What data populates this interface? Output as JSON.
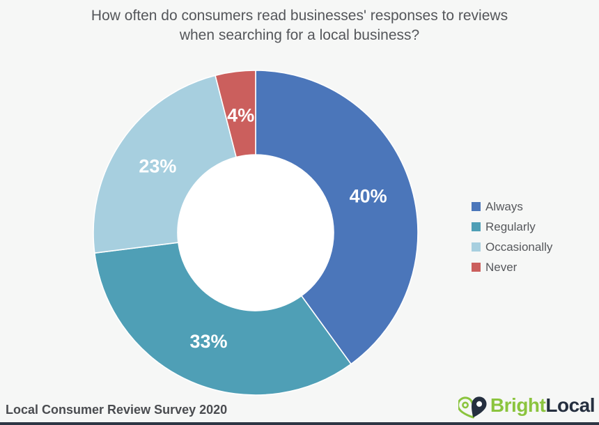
{
  "title": {
    "line1": "How often do consumers read businesses' responses to reviews",
    "line2": "when searching for a local business?"
  },
  "chart_data": {
    "type": "pie",
    "subtype": "donut",
    "title": "How often do consumers read businesses' responses to reviews when searching for a local business?",
    "categories": [
      "Always",
      "Regularly",
      "Occasionally",
      "Never"
    ],
    "values": [
      40,
      33,
      23,
      4
    ],
    "data_labels": [
      "40%",
      "33%",
      "23%",
      "4%"
    ],
    "colors": [
      "#4b76ba",
      "#4f9fb6",
      "#a7cfdf",
      "#cb5f5d"
    ],
    "start_angle_deg": 0,
    "direction": "clockwise",
    "inner_radius_ratio": 0.48,
    "legend_position": "right",
    "data_label_color": "#ffffff"
  },
  "footer": {
    "source": "Local Consumer Review Survey 2020"
  },
  "brand": {
    "name_part1": "Bright",
    "name_part2": "Local",
    "green": "#8bc43e",
    "navy": "#252f3f"
  },
  "colors": {
    "background": "#f6f7f6",
    "title_text": "#54565a",
    "legend_text": "#56585c",
    "source_text": "#4a4c50",
    "bottom_bar": "#2e3644",
    "donut_hole": "#ffffff"
  }
}
